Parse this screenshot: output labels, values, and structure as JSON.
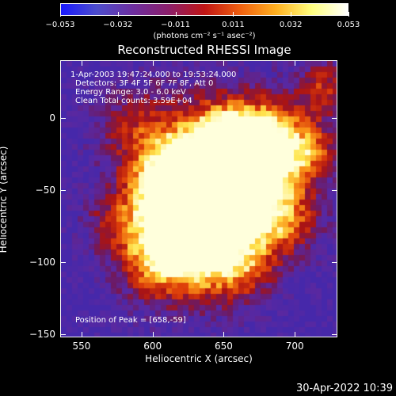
{
  "colorbar": {
    "tick_labels": [
      "−0.053",
      "−0.032",
      "−0.011",
      "0.011",
      "0.032",
      "0.053"
    ],
    "units_label": "(photons cm⁻² s⁻¹ asec⁻²)",
    "colors": [
      "#1a1aff",
      "#4d4dcc",
      "#6d2fa0",
      "#8b1f6b",
      "#c01515",
      "#f06010",
      "#ffb020",
      "#ffff80",
      "#ffffff"
    ]
  },
  "image": {
    "title": "Reconstructed RHESSI Image",
    "annotations": [
      "1-Apr-2003 19:47:24.000 to 19:53:24.000",
      "Detectors: 3F 4F 5F 6F 7F 8F, Att 0",
      "Energy Range: 3.0 - 6.0 keV",
      "Clean     Total counts: 3.59E+04"
    ],
    "peak_label": "Position of Peak = [658,-59]",
    "x_axis": {
      "title": "Heliocentric X (arcsec)",
      "ticks": [
        "550",
        "600",
        "650",
        "700"
      ],
      "range": [
        535,
        730
      ]
    },
    "y_axis": {
      "title": "Heliocentric Y (arcsec)",
      "ticks": [
        "0",
        "−50",
        "−100",
        "−150"
      ],
      "range": [
        -152,
        40
      ]
    }
  },
  "footer": {
    "timestamp": "30-Apr-2022 10:39"
  }
}
